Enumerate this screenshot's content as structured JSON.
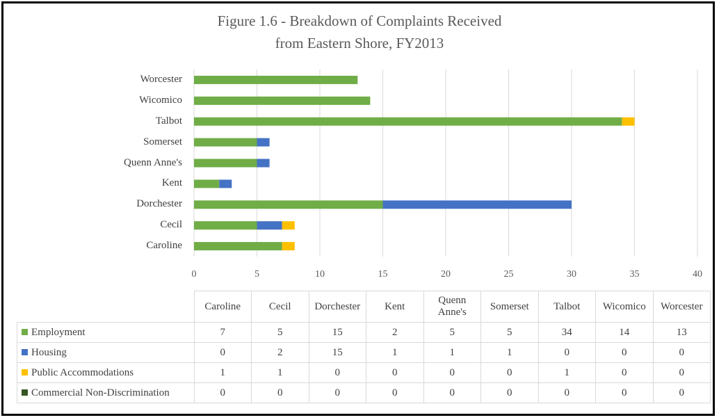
{
  "chart_data": {
    "type": "bar",
    "orientation": "horizontal",
    "stacked": true,
    "title": "Figure 1.6 - Breakdown of Complaints Received",
    "subtitle": "from Eastern Shore, FY2013",
    "categories": [
      "Caroline",
      "Cecil",
      "Dorchester",
      "Kent",
      "Quenn Anne's",
      "Somerset",
      "Talbot",
      "Wicomico",
      "Worcester"
    ],
    "table_headers": [
      "Caroline",
      "Cecil",
      "Dorchester",
      "Kent",
      "Quenn Anne's",
      "Somerset",
      "Talbot",
      "Wicomico",
      "Worcester"
    ],
    "series": [
      {
        "name": "Employment",
        "color": "#70ad47",
        "values": [
          7,
          5,
          15,
          2,
          5,
          5,
          34,
          14,
          13
        ]
      },
      {
        "name": "Housing",
        "color": "#4472c4",
        "values": [
          0,
          2,
          15,
          1,
          1,
          1,
          0,
          0,
          0
        ]
      },
      {
        "name": "Public Accommodations",
        "color": "#ffc000",
        "values": [
          1,
          1,
          0,
          0,
          0,
          0,
          1,
          0,
          0
        ]
      },
      {
        "name": "Commercial Non-Discrimination",
        "color": "#375623",
        "values": [
          0,
          0,
          0,
          0,
          0,
          0,
          0,
          0,
          0
        ]
      }
    ],
    "xlim": [
      0,
      40
    ],
    "xticks": [
      0,
      5,
      10,
      15,
      20,
      25,
      30,
      35,
      40
    ],
    "grid": true,
    "legend": "data-table-below"
  }
}
